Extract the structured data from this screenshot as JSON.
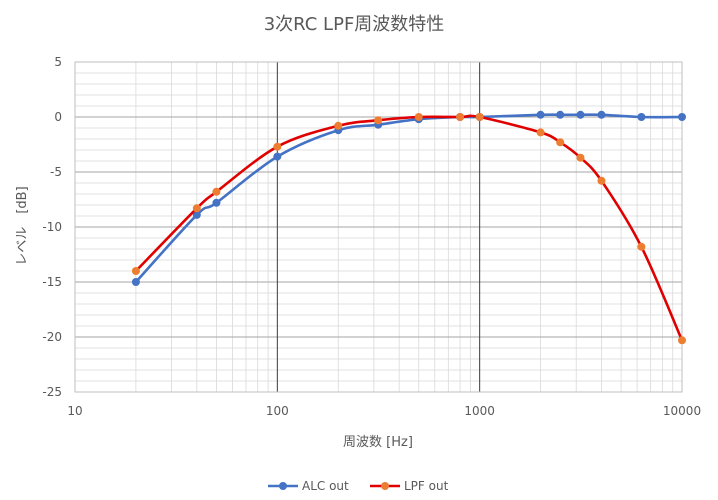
{
  "chart_data": {
    "type": "line",
    "title": "3次RC LPF周波数特性",
    "xlabel": "周波数 [Hz]",
    "ylabel": "レベル　[dB]",
    "x_scale": "log",
    "xlim": [
      10,
      10000
    ],
    "ylim": [
      -25,
      5
    ],
    "x_ticks": [
      10,
      100,
      1000,
      10000
    ],
    "x_tick_labels": [
      "10",
      "100",
      "1000",
      "10000"
    ],
    "y_ticks": [
      5,
      0,
      -5,
      -10,
      -15,
      -20,
      -25
    ],
    "y_tick_labels": [
      "5",
      "0",
      "-5",
      "-10",
      "-15",
      "-20",
      "-25"
    ],
    "grid": true,
    "legend": "bottom",
    "series": [
      {
        "name": "ALC out",
        "color": "#4472C4",
        "marker_color": "#4472C4",
        "x": [
          20,
          40,
          50,
          100,
          200,
          315,
          500,
          800,
          1000,
          2000,
          2500,
          3150,
          4000,
          6300,
          10000
        ],
        "y": [
          -15.0,
          -8.9,
          -7.8,
          -3.6,
          -1.2,
          -0.7,
          -0.2,
          0.0,
          0.0,
          0.2,
          0.2,
          0.2,
          0.2,
          0.0,
          0.0
        ]
      },
      {
        "name": "LPF out",
        "color": "#E00000",
        "marker_color": "#ED7D31",
        "x": [
          20,
          40,
          50,
          100,
          200,
          315,
          500,
          800,
          1000,
          2000,
          2500,
          3150,
          4000,
          6300,
          10000
        ],
        "y": [
          -14.0,
          -8.3,
          -6.8,
          -2.7,
          -0.8,
          -0.3,
          0.0,
          0.0,
          0.0,
          -1.4,
          -2.3,
          -3.7,
          -5.8,
          -11.8,
          -20.3
        ]
      }
    ]
  }
}
